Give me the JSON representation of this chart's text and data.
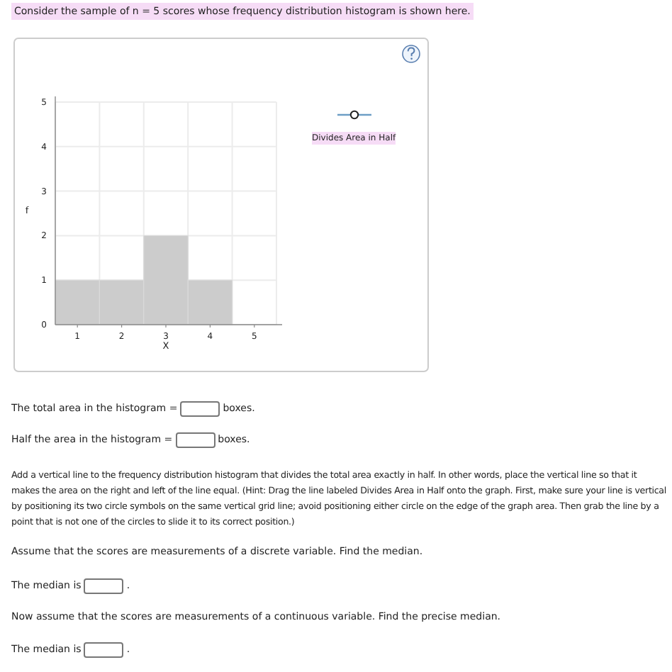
{
  "chart_data": {
    "type": "histogram",
    "title": "Consider the sample of n = 5 scores whose frequency distribution histogram is shown here.",
    "xlabel": "X",
    "ylabel": "f",
    "bins": [
      0.5,
      1.5,
      2.5,
      3.5,
      4.5
    ],
    "values": [
      1,
      1,
      2,
      1
    ],
    "color": "#cccccc",
    "xlim": [
      0.5,
      5.5
    ],
    "xticks": [
      1,
      2,
      3,
      4,
      5
    ],
    "ylim": [
      0,
      5
    ],
    "yticks": [
      0,
      1,
      2,
      3,
      4,
      5
    ],
    "grid": true,
    "annotations": [
      "Divides Area in Half",
      "The total area in the histogram =",
      "boxes.",
      "Half the area in the histogram =",
      "boxes.",
      "Add a vertical line to the frequency distribution histogram that divides the total area exactly in half. In other words, place the vertical line so that it makes the area on the right and left of the line equal. (Hint: Drag the line labeled Divides Area in Half onto the graph. First, make sure your line is vertical by positioning its two circle symbols on the same vertical grid line; avoid positioning either circle on the edge of the graph area. Then grab the line by a point that is not one of the circles to slide it to its correct position.)",
      "Assume that the scores are measurements of a discrete variable. Find the median.",
      "The median is",
      ".",
      "Now assume that the scores are measurements of a continuous variable. Find the precise median.",
      "The median is",
      "."
    ]
  }
}
